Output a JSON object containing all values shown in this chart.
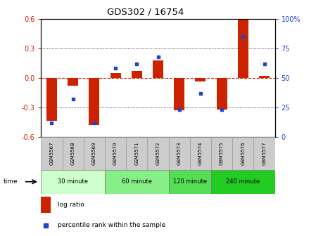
{
  "title": "GDS302 / 16754",
  "samples": [
    "GSM5567",
    "GSM5568",
    "GSM5569",
    "GSM5570",
    "GSM5571",
    "GSM5572",
    "GSM5573",
    "GSM5574",
    "GSM5575",
    "GSM5576",
    "GSM5577"
  ],
  "log_ratio": [
    -0.44,
    -0.08,
    -0.48,
    0.05,
    0.07,
    0.18,
    -0.33,
    -0.04,
    -0.32,
    0.6,
    0.02
  ],
  "percentile": [
    12,
    32,
    12,
    58,
    62,
    68,
    23,
    37,
    23,
    85,
    62
  ],
  "ylim_left": [
    -0.6,
    0.6
  ],
  "ylim_right": [
    0,
    100
  ],
  "yticks_left": [
    -0.6,
    -0.3,
    0.0,
    0.3,
    0.6
  ],
  "yticks_right": [
    0,
    25,
    50,
    75,
    100
  ],
  "ytick_labels_right": [
    "0",
    "25",
    "50",
    "75",
    "100%"
  ],
  "bar_color": "#cc2200",
  "dot_color": "#2244cc",
  "zero_line_color": "#cc2200",
  "grid_color": "#000000",
  "groups": [
    {
      "label": "30 minute",
      "start": 0,
      "end": 3,
      "color": "#ccffcc"
    },
    {
      "label": "60 minute",
      "start": 3,
      "end": 6,
      "color": "#88ee88"
    },
    {
      "label": "120 minute",
      "start": 6,
      "end": 8,
      "color": "#55dd55"
    },
    {
      "label": "240 minute",
      "start": 8,
      "end": 11,
      "color": "#22cc22"
    }
  ],
  "sample_box_color": "#cccccc",
  "sample_box_edge": "#999999",
  "time_label": "time",
  "legend_log_ratio": "log ratio",
  "legend_percentile": "percentile rank within the sample",
  "bar_width": 0.5
}
